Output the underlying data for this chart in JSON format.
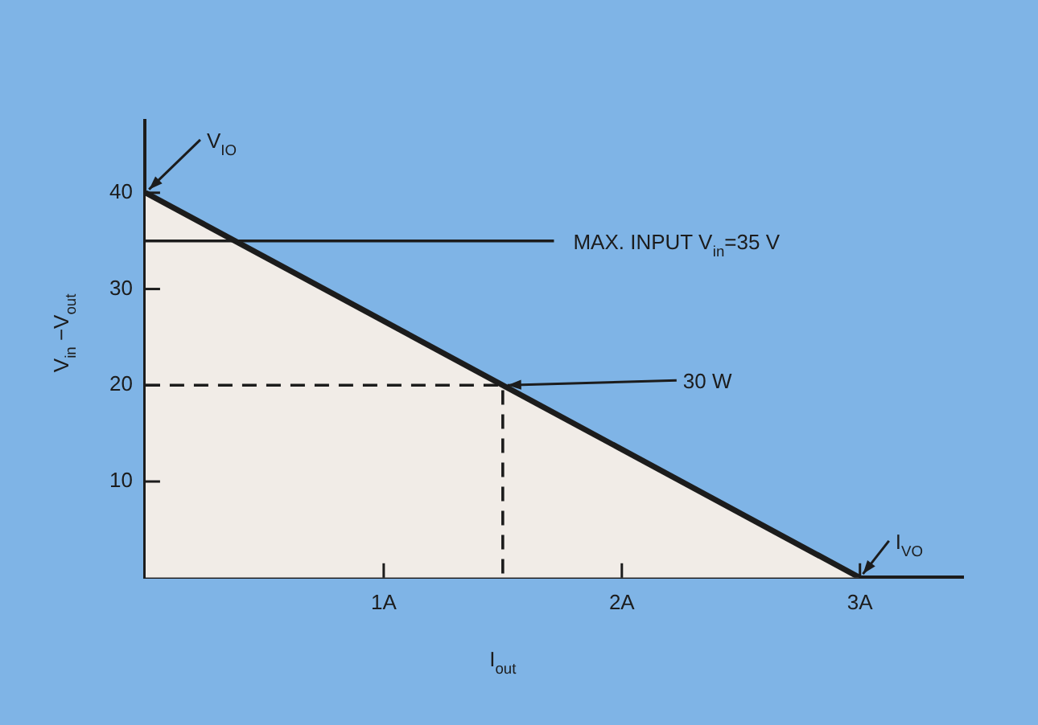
{
  "chart_data": {
    "type": "area",
    "xlabel": "I$_{out}$",
    "ylabel": "V$_{in}$ −V$_{out}$",
    "xlim": [
      0,
      3.43
    ],
    "ylim": [
      0,
      47.5
    ],
    "xticks": [
      {
        "value": 1,
        "label": "1A"
      },
      {
        "value": 2,
        "label": "2A"
      },
      {
        "value": 3,
        "label": "3A"
      }
    ],
    "yticks": [
      10,
      20,
      30,
      40
    ],
    "series": [
      {
        "color": "#1c1c1c",
        "x": [
          0,
          3
        ],
        "values": [
          40,
          0
        ]
      },
      {
        "type": "line",
        "color": "#1c1c1c",
        "line_style": "dashed",
        "x": [
          0,
          1.5,
          1.5
        ],
        "values": [
          20,
          20,
          0
        ]
      }
    ],
    "ref_lines": [
      {
        "axis": "y",
        "value": 35,
        "label": "MAX. INPUT V$_{in}$=35 V",
        "color": "#1c1c1c"
      }
    ],
    "annotations": [
      {
        "text": "V$_{IO}$",
        "x": 0,
        "y": 40
      },
      {
        "text": "30 W",
        "x": 1.5,
        "y": 20
      },
      {
        "text": "I$_{VO}$",
        "x": 3,
        "y": 0
      }
    ],
    "grid": false,
    "legend": false
  }
}
